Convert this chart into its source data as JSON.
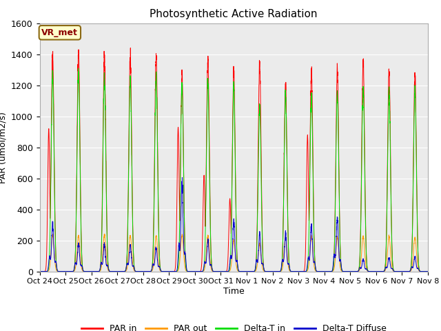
{
  "title": "Photosynthetic Active Radiation",
  "ylabel": "PAR (umol/m2/s)",
  "xlabel": "Time",
  "ylim": [
    0,
    1600
  ],
  "bg_color": "#ebebeb",
  "annotation_text": "VR_met",
  "legend_labels": [
    "PAR in",
    "PAR out",
    "Delta-T in",
    "Delta-T Diffuse"
  ],
  "legend_colors": [
    "#ff0000",
    "#ff9900",
    "#00dd00",
    "#0000cc"
  ],
  "xtick_labels": [
    "Oct 24",
    "Oct 25",
    "Oct 26",
    "Oct 27",
    "Oct 28",
    "Oct 29",
    "Oct 30",
    "Oct 31",
    "Nov 1",
    "Nov 2",
    "Nov 3",
    "Nov 4",
    "Nov 5",
    "Nov 6",
    "Nov 7",
    "Nov 8"
  ],
  "n_days": 15,
  "par_in_peaks": [
    1410,
    1420,
    1390,
    1380,
    1380,
    1260,
    1370,
    1290,
    1340,
    1200,
    1290,
    1290,
    1360,
    1300,
    1280
  ],
  "par_out_peaks": [
    235,
    230,
    235,
    230,
    230,
    235,
    235,
    200,
    175,
    220,
    225,
    220,
    225,
    225,
    220
  ],
  "delta_t_in_peaks": [
    1260,
    1270,
    1250,
    1240,
    1245,
    1210,
    1215,
    1190,
    1060,
    1130,
    1120,
    1150,
    1180,
    1165,
    1175
  ],
  "delta_t_diffuse_peaks": [
    310,
    185,
    175,
    170,
    155,
    570,
    200,
    330,
    240,
    240,
    295,
    350,
    80,
    90,
    95
  ],
  "par_in_secondary": [
    920,
    0,
    0,
    0,
    0,
    930,
    620,
    470,
    0,
    0,
    880,
    0,
    0,
    0,
    0
  ],
  "delta_t_secondary": [
    0,
    0,
    0,
    0,
    0,
    780,
    550,
    0,
    0,
    0,
    0,
    0,
    0,
    0,
    0
  ]
}
